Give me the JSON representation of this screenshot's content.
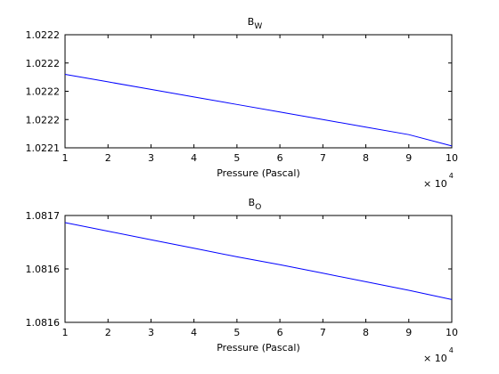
{
  "chart_data": [
    {
      "type": "line",
      "title": "B",
      "title_subscript": "W",
      "xlabel": "Pressure (Pascal)",
      "ylabel": "",
      "x_multiplier_label": "× 10",
      "x_multiplier_exponent": "4",
      "xlim": [
        1,
        10
      ],
      "x_ticks": [
        1,
        2,
        3,
        4,
        5,
        6,
        7,
        8,
        9,
        10
      ],
      "y_tick_labels": [
        "1.0222",
        "1.0222",
        "1.0222",
        "1.0222",
        "1.0221"
      ],
      "ylim": [
        1.02211,
        1.02223
      ],
      "y_tick_values": [
        1.02223,
        1.0222,
        1.02217,
        1.02214,
        1.02211
      ],
      "grid": false,
      "series": [
        {
          "color": "#0000ff",
          "x": [
            1,
            2,
            3,
            4,
            5,
            6,
            7,
            8,
            9,
            10
          ],
          "y": [
            1.022188,
            1.02218,
            1.022172,
            1.022164,
            1.022156,
            1.022148,
            1.02214,
            1.022132,
            1.022124,
            1.022112
          ]
        }
      ]
    },
    {
      "type": "line",
      "title": "B",
      "title_subscript": "O",
      "xlabel": "Pressure (Pascal)",
      "ylabel": "",
      "x_multiplier_label": "× 10",
      "x_multiplier_exponent": "4",
      "xlim": [
        1,
        10
      ],
      "x_ticks": [
        1,
        2,
        3,
        4,
        5,
        6,
        7,
        8,
        9,
        10
      ],
      "y_tick_labels": [
        "1.0817",
        "1.0816",
        "1.0816"
      ],
      "ylim": [
        1.081555,
        1.081705
      ],
      "y_tick_values": [
        1.081705,
        1.08163,
        1.081555
      ],
      "grid": false,
      "series": [
        {
          "color": "#0000ff",
          "x": [
            1,
            2,
            3,
            4,
            5,
            6,
            7,
            8,
            9,
            10
          ],
          "y": [
            1.081695,
            1.081683,
            1.081671,
            1.081659,
            1.081647,
            1.081636,
            1.081624,
            1.081612,
            1.0816,
            1.081587
          ]
        }
      ]
    }
  ]
}
